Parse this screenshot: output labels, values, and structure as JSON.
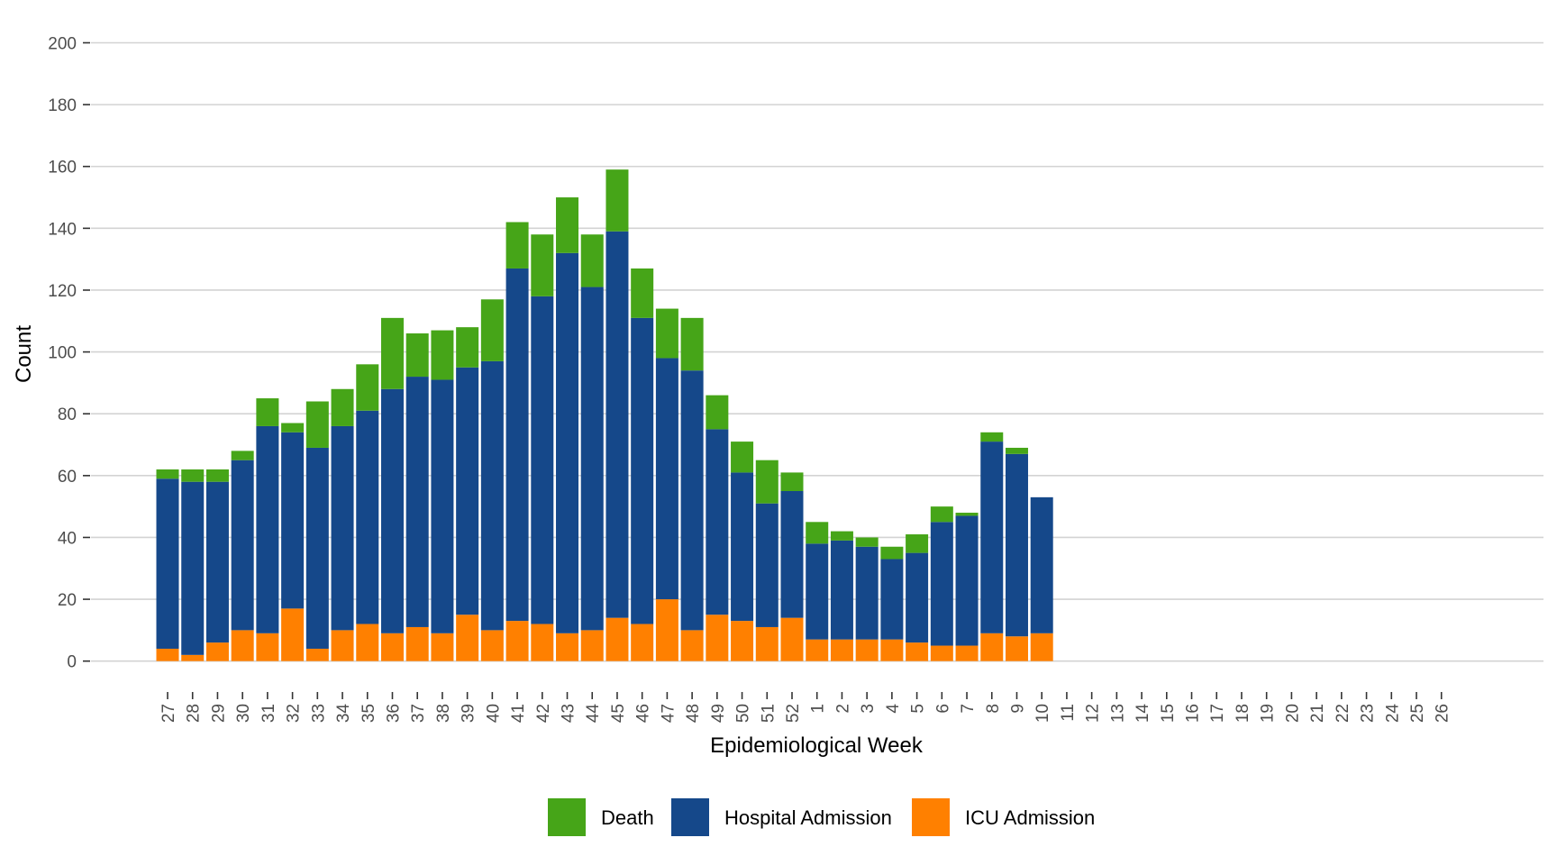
{
  "chart_data": {
    "type": "bar",
    "stacked": true,
    "title": "",
    "xlabel": "Epidemiological Week",
    "ylabel": "Count",
    "ylim": [
      0,
      200
    ],
    "yticks": [
      0,
      20,
      40,
      60,
      80,
      100,
      120,
      140,
      160,
      180,
      200
    ],
    "grid": true,
    "legend_position": "bottom",
    "categories": [
      "27",
      "28",
      "29",
      "30",
      "31",
      "32",
      "33",
      "34",
      "35",
      "36",
      "37",
      "38",
      "39",
      "40",
      "41",
      "42",
      "43",
      "44",
      "45",
      "46",
      "47",
      "48",
      "49",
      "50",
      "51",
      "52",
      "1",
      "2",
      "3",
      "4",
      "5",
      "6",
      "7",
      "8",
      "9",
      "10",
      "11",
      "12",
      "13",
      "14",
      "15",
      "16",
      "17",
      "18",
      "19",
      "20",
      "21",
      "22",
      "23",
      "24",
      "25",
      "26"
    ],
    "series": [
      {
        "name": "ICU Admission",
        "color": "#FF8000",
        "values": [
          4,
          2,
          6,
          10,
          9,
          17,
          4,
          10,
          12,
          9,
          11,
          9,
          15,
          10,
          13,
          12,
          9,
          10,
          14,
          12,
          20,
          10,
          15,
          13,
          11,
          14,
          7,
          7,
          7,
          7,
          6,
          5,
          5,
          9,
          8,
          9,
          null,
          null,
          null,
          null,
          null,
          null,
          null,
          null,
          null,
          null,
          null,
          null,
          null,
          null,
          null,
          null
        ]
      },
      {
        "name": "Hospital Admission",
        "color": "#15488A",
        "values": [
          55,
          56,
          52,
          55,
          67,
          57,
          65,
          66,
          69,
          79,
          81,
          82,
          80,
          87,
          114,
          106,
          123,
          111,
          125,
          99,
          78,
          84,
          60,
          48,
          40,
          41,
          31,
          32,
          30,
          26,
          29,
          40,
          42,
          62,
          59,
          44,
          null,
          null,
          null,
          null,
          null,
          null,
          null,
          null,
          null,
          null,
          null,
          null,
          null,
          null,
          null,
          null
        ]
      },
      {
        "name": "Death",
        "color": "#46A518",
        "values": [
          3,
          4,
          4,
          3,
          9,
          3,
          15,
          12,
          15,
          23,
          14,
          16,
          13,
          20,
          15,
          20,
          18,
          17,
          20,
          16,
          16,
          17,
          11,
          10,
          14,
          6,
          7,
          3,
          3,
          4,
          6,
          5,
          1,
          3,
          2,
          0,
          null,
          null,
          null,
          null,
          null,
          null,
          null,
          null,
          null,
          null,
          null,
          null,
          null,
          null,
          null,
          null
        ]
      }
    ],
    "totals": [
      62,
      62,
      62,
      68,
      85,
      77,
      84,
      88,
      96,
      111,
      106,
      107,
      108,
      117,
      142,
      138,
      150,
      138,
      159,
      127,
      114,
      111,
      86,
      71,
      65,
      61,
      45,
      42,
      40,
      37,
      41,
      50,
      48,
      74,
      69,
      53,
      null,
      null,
      null,
      null,
      null,
      null,
      null,
      null,
      null,
      null,
      null,
      null,
      null,
      null,
      null,
      null
    ],
    "legend": [
      {
        "name": "Death",
        "color": "#46A518"
      },
      {
        "name": "Hospital Admission",
        "color": "#15488A"
      },
      {
        "name": "ICU Admission",
        "color": "#FF8000"
      }
    ]
  }
}
